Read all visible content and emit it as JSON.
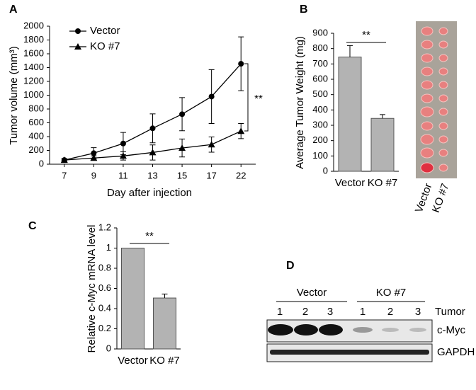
{
  "chart_data": [
    {
      "type": "line",
      "panel": "A",
      "x_label": "Day after injection",
      "y_label": "Tumor volume (mm³)",
      "categories": [
        "7",
        "9",
        "11",
        "13",
        "15",
        "17",
        "22"
      ],
      "series": [
        {
          "name": "Vector",
          "color": "#000000",
          "marker": "circle",
          "values": [
            60,
            160,
            300,
            520,
            725,
            980,
            1455
          ],
          "errors": [
            20,
            80,
            160,
            210,
            240,
            390,
            390
          ]
        },
        {
          "name": "KO #7",
          "color": "#000000",
          "marker": "triangle",
          "values": [
            60,
            90,
            120,
            170,
            235,
            285,
            480
          ],
          "errors": [
            20,
            30,
            60,
            110,
            130,
            110,
            110
          ]
        }
      ],
      "ylim": [
        0,
        2000
      ],
      "yticks": [
        0,
        200,
        400,
        600,
        800,
        1000,
        1200,
        1400,
        1600,
        1800,
        2000
      ],
      "annotation": "**"
    },
    {
      "type": "bar",
      "panel": "B",
      "y_label": "Average Tumor Weight (mg)",
      "categories": [
        "Vector",
        "KO #7"
      ],
      "values": [
        745,
        345
      ],
      "errors": [
        75,
        25
      ],
      "color": "#b3b3b3",
      "ylim": [
        0,
        900
      ],
      "yticks": [
        0,
        100,
        200,
        300,
        400,
        500,
        600,
        700,
        800,
        900
      ],
      "annotation": "**"
    },
    {
      "type": "bar",
      "panel": "C",
      "y_label": "Relative c-Myc mRNA level",
      "categories": [
        "Vector",
        "KO #7"
      ],
      "values": [
        1,
        0.505
      ],
      "errors": [
        null,
        0.04
      ],
      "color": "#b3b3b3",
      "ylim": [
        0,
        1.2
      ],
      "yticks": [
        0,
        0.2,
        0.4,
        0.6,
        0.8,
        1,
        1.2
      ],
      "annotation": "**"
    }
  ],
  "photo": {
    "labels": [
      "Vector",
      "KO #7"
    ]
  },
  "blot": {
    "panel": "D",
    "groups": [
      "Vector",
      "KO #7"
    ],
    "lanes": [
      "1",
      "2",
      "3",
      "1",
      "2",
      "3"
    ],
    "lane_header": "Tumor",
    "rows": [
      "c-Myc",
      "GAPDH"
    ]
  }
}
